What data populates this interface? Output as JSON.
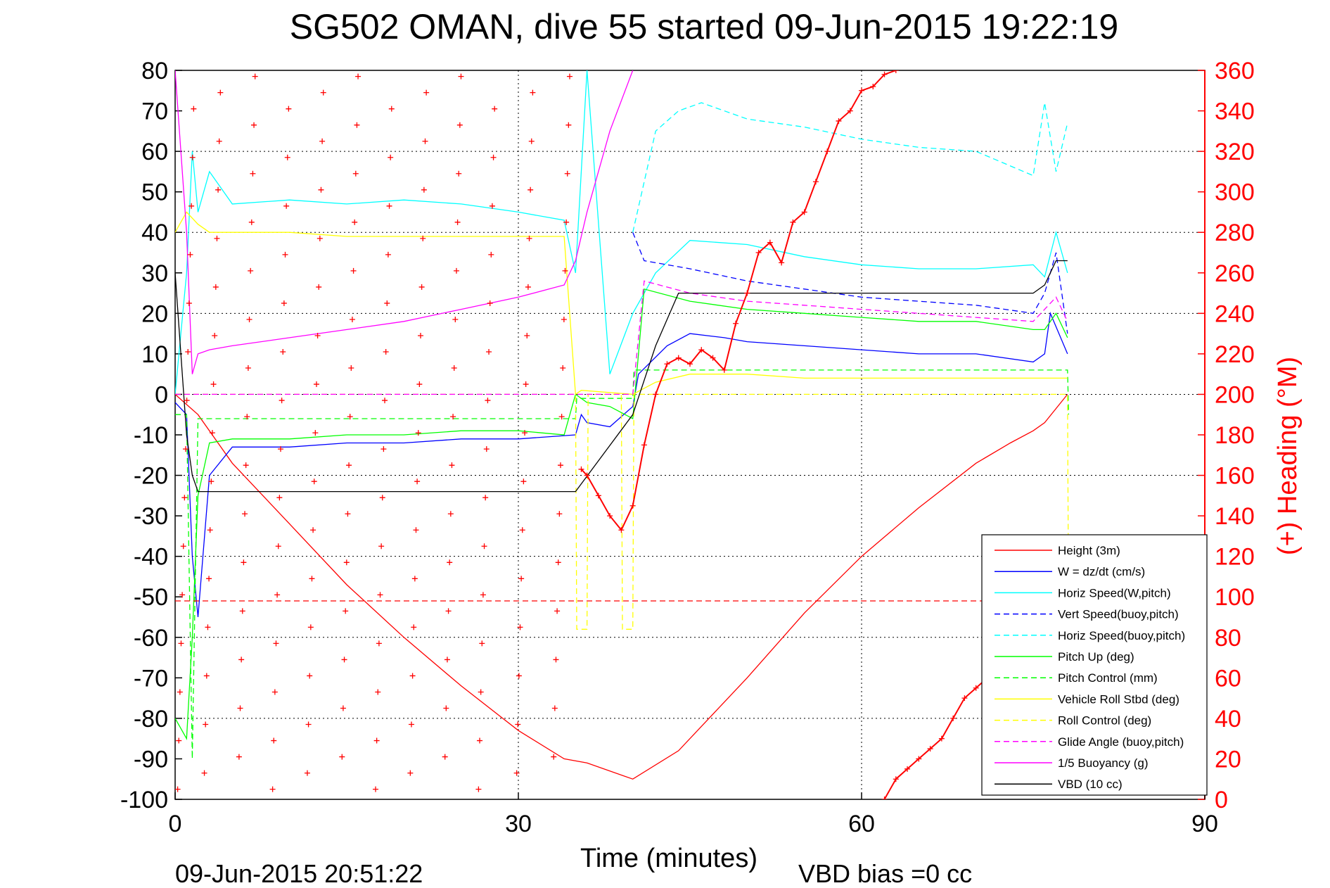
{
  "chart_data": {
    "type": "line",
    "title": "SG502 OMAN, dive 55 started 09-Jun-2015 19:22:19",
    "xlabel": "Time (minutes)",
    "ylabel_right": "(+) Heading (°M)",
    "xlim": [
      0,
      90
    ],
    "ylim_left": [
      -100,
      80
    ],
    "ylim_right": [
      0,
      360
    ],
    "x_ticks": [
      "0",
      "30",
      "60",
      "90"
    ],
    "y_ticks_left": [
      "80",
      "70",
      "60",
      "50",
      "40",
      "30",
      "20",
      "10",
      "0",
      "-10",
      "-20",
      "-30",
      "-40",
      "-50",
      "-60",
      "-70",
      "-80",
      "-90",
      "-100"
    ],
    "y_ticks_right": [
      "360",
      "340",
      "320",
      "300",
      "280",
      "260",
      "240",
      "220",
      "200",
      "180",
      "160",
      "140",
      "120",
      "100",
      "80",
      "60",
      "40",
      "20",
      "0"
    ],
    "grid": true,
    "legend_position": "bottom-right",
    "footer_left": "09-Jun-2015 20:51:22",
    "footer_right": "VBD bias =0 cc",
    "series": [
      {
        "name": "Height (3m)",
        "color": "#ff0000",
        "dash": "solid",
        "x": [
          0,
          2,
          5,
          10,
          15,
          20,
          25,
          30,
          34,
          36,
          40,
          44,
          50,
          55,
          60,
          65,
          70,
          73,
          75,
          76,
          78
        ],
        "y": [
          0,
          -5,
          -17,
          -32,
          -47,
          -60,
          -72,
          -83,
          -90,
          -91,
          -95,
          -88,
          -70,
          -54,
          -40,
          -28,
          -17,
          -12,
          -9,
          -7,
          0
        ]
      },
      {
        "name": "W = dz/dt (cm/s)",
        "color": "#0000ff",
        "dash": "solid",
        "x": [
          0,
          1,
          1.5,
          2,
          3,
          5,
          10,
          15,
          20,
          25,
          30,
          35,
          35.5,
          36,
          38,
          40,
          40.5,
          43,
          45,
          48,
          50,
          55,
          60,
          65,
          70,
          75,
          76,
          76.5,
          78
        ],
        "y": [
          -2,
          -5,
          -40,
          -55,
          -20,
          -13,
          -13,
          -12,
          -12,
          -11,
          -11,
          -10,
          -5,
          -7,
          -8,
          -3,
          5,
          12,
          15,
          14,
          13,
          12,
          11,
          10,
          10,
          8,
          10,
          20,
          10
        ]
      },
      {
        "name": "Horiz Speed(W,pitch)",
        "color": "#00ffff",
        "dash": "solid",
        "x": [
          0,
          1,
          1.5,
          2,
          3,
          5,
          10,
          15,
          20,
          25,
          30,
          34,
          35,
          36,
          38,
          40,
          42,
          45,
          50,
          55,
          60,
          65,
          70,
          75,
          76,
          77,
          78
        ],
        "y": [
          0,
          30,
          60,
          45,
          55,
          47,
          48,
          47,
          48,
          47,
          45,
          43,
          30,
          80,
          5,
          20,
          30,
          38,
          37,
          34,
          32,
          31,
          31,
          32,
          29,
          40,
          30
        ]
      },
      {
        "name": "Vert Speed(buoy,pitch)",
        "color": "#0000ff",
        "dash": "dashed",
        "x": [
          40,
          41,
          45,
          50,
          55,
          60,
          65,
          70,
          75,
          76,
          77,
          78
        ],
        "y": [
          40,
          33,
          31,
          28,
          26,
          24,
          23,
          22,
          20,
          25,
          35,
          15
        ]
      },
      {
        "name": "Horiz Speed(buoy,pitch)",
        "color": "#00ffff",
        "dash": "dashed",
        "x": [
          40,
          42,
          44,
          46,
          50,
          55,
          60,
          65,
          70,
          75,
          76,
          77,
          78
        ],
        "y": [
          40,
          65,
          70,
          72,
          68,
          66,
          63,
          61,
          60,
          54,
          72,
          55,
          67
        ]
      },
      {
        "name": "Pitch Up (deg)",
        "color": "#00ff00",
        "dash": "solid",
        "x": [
          0,
          1,
          1.5,
          2,
          3,
          5,
          10,
          15,
          20,
          25,
          30,
          34,
          35,
          36,
          38,
          40,
          41,
          45,
          50,
          55,
          60,
          65,
          70,
          75,
          76,
          77,
          78
        ],
        "y": [
          -80,
          -85,
          -60,
          -25,
          -12,
          -11,
          -11,
          -10,
          -10,
          -9,
          -9,
          -10,
          0,
          -2,
          -3,
          -6,
          26,
          23,
          21,
          20,
          19,
          18,
          18,
          16,
          16,
          20,
          14
        ]
      },
      {
        "name": "Pitch Control (mm)",
        "color": "#00ff00",
        "dash": "dashed",
        "x": [
          0,
          1,
          1.5,
          2,
          35,
          35.1,
          40,
          40.1,
          78,
          78.1
        ],
        "y": [
          -5,
          -5,
          -90,
          -6,
          -6,
          -1,
          -1,
          6,
          6,
          -5
        ]
      },
      {
        "name": "Vehicle Roll Stbd (deg)",
        "color": "#ffff00",
        "dash": "solid",
        "x": [
          0,
          1,
          2,
          3,
          5,
          10,
          15,
          20,
          25,
          30,
          34,
          35,
          35.5,
          40,
          42,
          45,
          50,
          55,
          60,
          65,
          70,
          75,
          78
        ],
        "y": [
          40,
          45,
          42,
          40,
          40,
          40,
          39,
          39,
          39,
          39,
          39,
          0,
          1,
          0,
          3,
          5,
          5,
          4,
          4,
          4,
          4,
          4,
          4
        ]
      },
      {
        "name": "Roll Control (deg)",
        "color": "#ffff00",
        "dash": "dashed",
        "x": [
          0,
          1,
          35,
          35.1,
          36,
          36.1,
          39,
          39.1,
          40,
          40.1,
          78,
          78.1
        ],
        "y": [
          0,
          0,
          0,
          -58,
          -58,
          0,
          0,
          -58,
          -58,
          0,
          0,
          -58
        ]
      },
      {
        "name": "Glide Angle (buoy,pitch)",
        "color": "#ff00ff",
        "dash": "dashed",
        "x": [
          0,
          40,
          41,
          45,
          50,
          55,
          60,
          65,
          70,
          75,
          76,
          77,
          78
        ],
        "y": [
          0,
          0,
          28,
          25,
          23,
          22,
          21,
          20,
          19,
          18,
          21,
          24,
          18
        ]
      },
      {
        "name": "1/5 Buoyancy (g)",
        "color": "#ff00ff",
        "dash": "solid",
        "x": [
          0,
          1,
          1.5,
          2,
          3,
          5,
          10,
          15,
          20,
          25,
          30,
          34,
          35,
          36,
          38,
          40
        ],
        "y": [
          80,
          40,
          5,
          10,
          11,
          12,
          14,
          16,
          18,
          21,
          24,
          27,
          33,
          45,
          65,
          80
        ]
      },
      {
        "name": "VBD (10 cc)",
        "color": "#000000",
        "dash": "solid",
        "x": [
          0,
          1,
          1.5,
          2,
          5,
          10,
          20,
          30,
          35,
          40,
          42,
          44,
          50,
          60,
          70,
          75,
          76,
          77,
          78
        ],
        "y": [
          30,
          -10,
          -20,
          -24,
          -24,
          -24,
          -24,
          -24,
          -24,
          -5,
          12,
          25,
          25,
          25,
          25,
          25,
          27,
          33,
          33
        ]
      },
      {
        "name": "Heading horizontal line",
        "color": "#ff0000",
        "dash": "dashed",
        "x": [
          0,
          90
        ],
        "y": [
          -51,
          -51
        ]
      }
    ],
    "heading_points_desc": "red + markers on right axis",
    "heading_series": {
      "color": "#ff0000",
      "x": [
        35.5,
        36,
        37,
        38,
        39,
        40,
        41,
        42,
        43,
        44,
        45,
        46,
        47,
        48,
        49,
        50,
        51,
        52,
        53,
        54,
        55,
        56,
        57,
        58,
        59,
        60,
        61,
        62,
        63
      ],
      "y": [
        163,
        160,
        150,
        140,
        133,
        145,
        175,
        200,
        215,
        218,
        215,
        222,
        218,
        212,
        235,
        250,
        270,
        275,
        265,
        285,
        290,
        305,
        320,
        335,
        340,
        350,
        352,
        358,
        360
      ]
    },
    "heading_series_2": {
      "color": "#ff0000",
      "x": [
        62,
        63,
        64,
        65,
        66,
        67,
        68,
        69,
        70,
        71,
        72,
        73,
        74
      ],
      "y": [
        0,
        10,
        15,
        20,
        25,
        30,
        40,
        50,
        55,
        60,
        65,
        72,
        80
      ]
    }
  }
}
